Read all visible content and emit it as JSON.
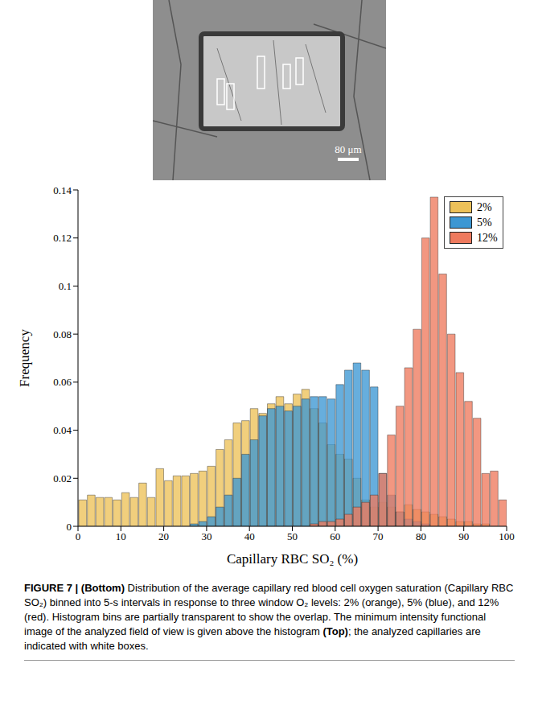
{
  "image": {
    "scale_bar": "80 μm"
  },
  "chart_data": {
    "type": "histogram",
    "xlabel": "Capillary RBC SO₂ (%)",
    "ylabel": "Frequency",
    "bins": [
      0,
      2,
      4,
      6,
      8,
      10,
      12,
      14,
      16,
      18,
      20,
      22,
      24,
      26,
      28,
      30,
      32,
      34,
      36,
      38,
      40,
      42,
      44,
      46,
      48,
      50,
      52,
      54,
      56,
      58,
      60,
      62,
      64,
      66,
      68,
      70,
      72,
      74,
      76,
      78,
      80,
      82,
      84,
      86,
      88,
      90,
      92,
      94,
      96,
      98,
      100
    ],
    "series": [
      {
        "name": "2%",
        "color": "#edc159",
        "values": [
          0.011,
          0.013,
          0.012,
          0.012,
          0.011,
          0.014,
          0.012,
          0.018,
          0.012,
          0.024,
          0.019,
          0.021,
          0.021,
          0.022,
          0.023,
          0.025,
          0.032,
          0.036,
          0.043,
          0.044,
          0.049,
          0.047,
          0.051,
          0.054,
          0.051,
          0.055,
          0.057,
          0.049,
          0.043,
          0.034,
          0.03,
          0.028,
          0.02,
          0.011,
          0.008,
          0.01,
          0.008,
          0.006,
          0.009,
          0.007,
          0.006,
          0.005,
          0.004,
          0.003,
          0.002,
          0.002,
          0.001,
          0.001,
          0,
          0
        ]
      },
      {
        "name": "5%",
        "color": "#3c97d3",
        "values": [
          0,
          0,
          0,
          0,
          0,
          0,
          0,
          0,
          0,
          0,
          0,
          0,
          0,
          0.001,
          0.002,
          0.004,
          0.008,
          0.013,
          0.02,
          0.03,
          0.036,
          0.046,
          0.049,
          0.05,
          0.048,
          0.05,
          0.053,
          0.054,
          0.054,
          0.053,
          0.059,
          0.065,
          0.068,
          0.065,
          0.058,
          0.022,
          0.013,
          0.006,
          0.003,
          0.002,
          0.001,
          0,
          0,
          0,
          0,
          0,
          0,
          0,
          0,
          0
        ]
      },
      {
        "name": "12%",
        "color": "#ee7a5e",
        "values": [
          0,
          0,
          0,
          0,
          0,
          0,
          0,
          0,
          0,
          0,
          0,
          0,
          0,
          0,
          0,
          0,
          0,
          0,
          0,
          0,
          0,
          0,
          0,
          0,
          0,
          0,
          0,
          0.001,
          0.002,
          0.002,
          0.003,
          0.005,
          0.008,
          0.01,
          0.013,
          0.022,
          0.038,
          0.05,
          0.066,
          0.082,
          0.12,
          0.137,
          0.105,
          0.08,
          0.064,
          0.052,
          0.045,
          0.022,
          0.023,
          0.011
        ]
      }
    ],
    "xlim": [
      0,
      100
    ],
    "xticks": [
      0,
      10,
      20,
      30,
      40,
      50,
      60,
      70,
      80,
      90,
      100
    ],
    "ylim": [
      0,
      0.14
    ],
    "yticks": [
      0,
      0.02,
      0.04,
      0.06,
      0.08,
      0.1,
      0.12,
      0.14
    ],
    "grid": false,
    "legend": "upper right"
  },
  "caption": [
    {
      "text": "FIGURE 7 | ",
      "bold": true
    },
    {
      "text": "(Bottom)",
      "bold": true
    },
    {
      "text": " Distribution of the average capillary red blood cell oxygen saturation (Capillary RBC SO₂) binned into 5-s intervals in response to three window O₂ levels: 2% (orange), 5% (blue), and 12% (red). Histogram bins are partially transparent to show the overlap. The minimum intensity functional image of the analyzed field of view is given above the histogram ",
      "bold": false
    },
    {
      "text": "(Top)",
      "bold": true
    },
    {
      "text": "; the analyzed capillaries are indicated with white boxes.",
      "bold": false
    }
  ]
}
